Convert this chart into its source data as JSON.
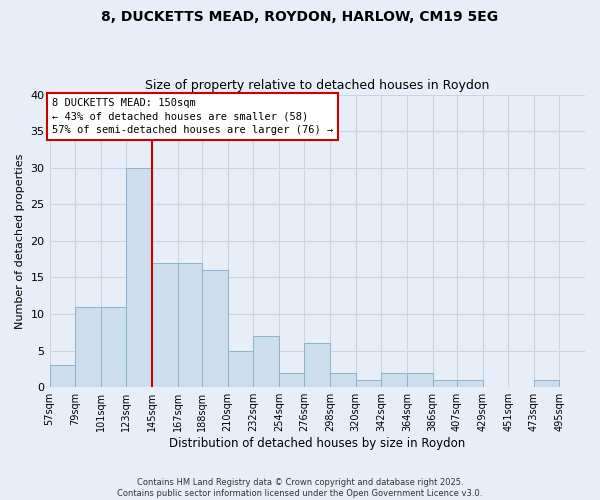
{
  "title": "8, DUCKETTS MEAD, ROYDON, HARLOW, CM19 5EG",
  "subtitle": "Size of property relative to detached houses in Roydon",
  "xlabel": "Distribution of detached houses by size in Roydon",
  "ylabel": "Number of detached properties",
  "bar_labels": [
    "57sqm",
    "79sqm",
    "101sqm",
    "123sqm",
    "145sqm",
    "167sqm",
    "188sqm",
    "210sqm",
    "232sqm",
    "254sqm",
    "276sqm",
    "298sqm",
    "320sqm",
    "342sqm",
    "364sqm",
    "386sqm",
    "407sqm",
    "429sqm",
    "451sqm",
    "473sqm",
    "495sqm"
  ],
  "bar_values": [
    3,
    11,
    11,
    30,
    17,
    17,
    16,
    5,
    7,
    2,
    6,
    2,
    1,
    2,
    2,
    1,
    1,
    0,
    0,
    1,
    0
  ],
  "bar_color": "#ccdded",
  "bar_edge_color": "#8ab4cc",
  "vline_x_idx": 4,
  "vline_color": "#cc0000",
  "annotation_line1": "8 DUCKETTS MEAD: 150sqm",
  "annotation_line2": "← 43% of detached houses are smaller (58)",
  "annotation_line3": "57% of semi-detached houses are larger (76) →",
  "annotation_box_color": "#ffffff",
  "annotation_box_edge": "#cc0000",
  "ylim": [
    0,
    40
  ],
  "yticks": [
    0,
    5,
    10,
    15,
    20,
    25,
    30,
    35,
    40
  ],
  "grid_color": "#c8d4e4",
  "background_color": "#e8eef8",
  "footer_line1": "Contains HM Land Registry data © Crown copyright and database right 2025.",
  "footer_line2": "Contains public sector information licensed under the Open Government Licence v3.0.",
  "bin_edges": [
    57,
    79,
    101,
    123,
    145,
    167,
    188,
    210,
    232,
    254,
    276,
    298,
    320,
    342,
    364,
    386,
    407,
    429,
    451,
    473,
    495,
    517
  ]
}
